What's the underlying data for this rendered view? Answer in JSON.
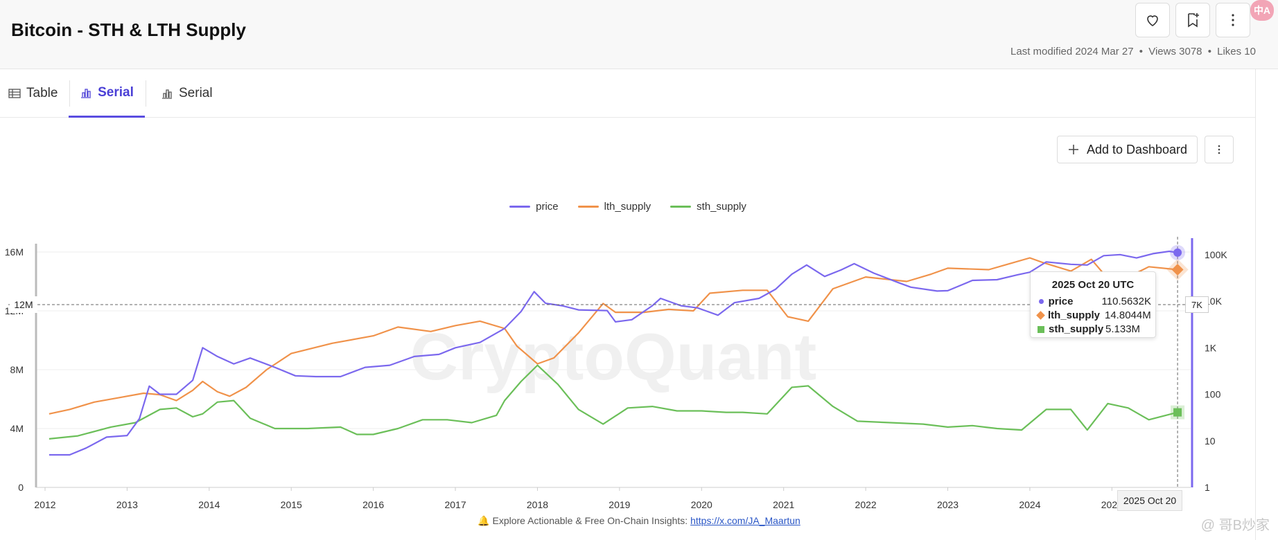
{
  "header": {
    "title": "Bitcoin - STH & LTH Supply",
    "meta_modified": "Last modified 2024 Mar 27",
    "meta_views": "Views 3078",
    "meta_likes": "Likes 10",
    "meta_sep": "•",
    "translate_badge": "中A"
  },
  "tabs": [
    {
      "label": "Table",
      "icon": "table-icon"
    },
    {
      "label": "Serial",
      "icon": "bar-chart-icon"
    },
    {
      "label": "Serial",
      "icon": "bar-chart-icon"
    }
  ],
  "toolbar": {
    "add_label": "Add to Dashboard"
  },
  "colors": {
    "price": "#7b68ee",
    "lth": "#f0924a",
    "sth": "#6bbf59",
    "accent": "#5a4de0"
  },
  "tooltip": {
    "title": "2025 Oct 20 UTC",
    "rows": [
      {
        "name": "price",
        "value": "110.5632K"
      },
      {
        "name": "lth_supply",
        "value": "14.8044M"
      },
      {
        "name": "sth_supply",
        "value": "5.133M"
      }
    ]
  },
  "badges": {
    "right_axis": "7K",
    "date": "2025 Oct 20",
    "left_axis": "12M"
  },
  "footer": {
    "text": "🔔 Explore Actionable & Free On-Chain Insights: ",
    "link": "https://x.com/JA_Maartun"
  },
  "watermark": "CryptoQuant",
  "corner_watermark": "@ 哥B炒家",
  "chart_data": {
    "type": "line",
    "title": "",
    "legend_position": "top-center",
    "x_ticks": [
      "2012",
      "2013",
      "2014",
      "2015",
      "2016",
      "2017",
      "2018",
      "2019",
      "2020",
      "2021",
      "2022",
      "2023",
      "2024",
      "2025"
    ],
    "y_left": {
      "label": "",
      "ticks": [
        "0",
        "4M",
        "8M",
        "12M",
        "16M"
      ],
      "range": [
        0,
        16000000
      ]
    },
    "y_right": {
      "label": "",
      "scale": "log",
      "ticks": [
        "1",
        "10",
        "100",
        "1K",
        "10K",
        "100K"
      ],
      "range": [
        1,
        150000
      ]
    },
    "series": [
      {
        "name": "price",
        "axis": "right",
        "color": "#7b68ee",
        "points": [
          [
            2012.05,
            5
          ],
          [
            2012.3,
            5
          ],
          [
            2012.5,
            7
          ],
          [
            2012.75,
            12
          ],
          [
            2013.0,
            13
          ],
          [
            2013.15,
            30
          ],
          [
            2013.27,
            150
          ],
          [
            2013.4,
            100
          ],
          [
            2013.6,
            100
          ],
          [
            2013.8,
            200
          ],
          [
            2013.92,
            1000
          ],
          [
            2014.1,
            650
          ],
          [
            2014.3,
            450
          ],
          [
            2014.5,
            600
          ],
          [
            2014.8,
            380
          ],
          [
            2015.05,
            250
          ],
          [
            2015.3,
            240
          ],
          [
            2015.6,
            240
          ],
          [
            2015.9,
            380
          ],
          [
            2016.2,
            420
          ],
          [
            2016.5,
            650
          ],
          [
            2016.8,
            720
          ],
          [
            2017.0,
            1000
          ],
          [
            2017.3,
            1300
          ],
          [
            2017.6,
            2600
          ],
          [
            2017.8,
            6000
          ],
          [
            2017.96,
            16000
          ],
          [
            2018.1,
            9000
          ],
          [
            2018.3,
            8000
          ],
          [
            2018.5,
            6500
          ],
          [
            2018.85,
            6300
          ],
          [
            2018.95,
            3600
          ],
          [
            2019.15,
            4000
          ],
          [
            2019.4,
            8000
          ],
          [
            2019.5,
            11500
          ],
          [
            2019.75,
            8000
          ],
          [
            2019.95,
            7200
          ],
          [
            2020.2,
            5000
          ],
          [
            2020.4,
            9300
          ],
          [
            2020.7,
            11500
          ],
          [
            2020.9,
            18000
          ],
          [
            2021.1,
            38000
          ],
          [
            2021.28,
            60000
          ],
          [
            2021.5,
            34000
          ],
          [
            2021.7,
            47000
          ],
          [
            2021.86,
            64000
          ],
          [
            2022.1,
            40000
          ],
          [
            2022.4,
            25000
          ],
          [
            2022.55,
            20000
          ],
          [
            2022.87,
            16500
          ],
          [
            2023.0,
            16800
          ],
          [
            2023.3,
            28000
          ],
          [
            2023.6,
            29000
          ],
          [
            2023.85,
            37000
          ],
          [
            2024.0,
            42000
          ],
          [
            2024.2,
            70000
          ],
          [
            2024.5,
            62000
          ],
          [
            2024.7,
            60000
          ],
          [
            2024.9,
            95000
          ],
          [
            2025.1,
            100000
          ],
          [
            2025.3,
            85000
          ],
          [
            2025.5,
            105000
          ],
          [
            2025.7,
            118000
          ],
          [
            2025.8,
            110563
          ]
        ]
      },
      {
        "name": "lth_supply",
        "axis": "left",
        "color": "#f0924a",
        "points": [
          [
            2012.05,
            5.0
          ],
          [
            2012.3,
            5.3
          ],
          [
            2012.6,
            5.8
          ],
          [
            2012.9,
            6.1
          ],
          [
            2013.2,
            6.4
          ],
          [
            2013.4,
            6.3
          ],
          [
            2013.6,
            5.9
          ],
          [
            2013.8,
            6.6
          ],
          [
            2013.92,
            7.2
          ],
          [
            2014.1,
            6.5
          ],
          [
            2014.25,
            6.2
          ],
          [
            2014.45,
            6.8
          ],
          [
            2014.7,
            8.0
          ],
          [
            2015.0,
            9.1
          ],
          [
            2015.5,
            9.8
          ],
          [
            2016.0,
            10.3
          ],
          [
            2016.3,
            10.9
          ],
          [
            2016.7,
            10.6
          ],
          [
            2017.0,
            11.0
          ],
          [
            2017.3,
            11.3
          ],
          [
            2017.6,
            10.8
          ],
          [
            2017.75,
            9.6
          ],
          [
            2018.0,
            8.4
          ],
          [
            2018.2,
            8.8
          ],
          [
            2018.5,
            10.5
          ],
          [
            2018.8,
            12.5
          ],
          [
            2018.95,
            11.9
          ],
          [
            2019.3,
            11.9
          ],
          [
            2019.6,
            12.1
          ],
          [
            2019.9,
            12.0
          ],
          [
            2020.1,
            13.2
          ],
          [
            2020.5,
            13.4
          ],
          [
            2020.8,
            13.4
          ],
          [
            2021.05,
            11.6
          ],
          [
            2021.3,
            11.3
          ],
          [
            2021.6,
            13.5
          ],
          [
            2022.0,
            14.3
          ],
          [
            2022.5,
            14.0
          ],
          [
            2022.8,
            14.5
          ],
          [
            2023.0,
            14.9
          ],
          [
            2023.5,
            14.8
          ],
          [
            2024.0,
            15.6
          ],
          [
            2024.15,
            15.3
          ],
          [
            2024.5,
            14.7
          ],
          [
            2024.75,
            15.5
          ],
          [
            2024.95,
            14.2
          ],
          [
            2025.2,
            14.3
          ],
          [
            2025.45,
            15.0
          ],
          [
            2025.8,
            14.8
          ]
        ]
      },
      {
        "name": "sth_supply",
        "axis": "left",
        "color": "#6bbf59",
        "points": [
          [
            2012.05,
            3.3
          ],
          [
            2012.4,
            3.5
          ],
          [
            2012.8,
            4.1
          ],
          [
            2013.1,
            4.4
          ],
          [
            2013.4,
            5.3
          ],
          [
            2013.6,
            5.4
          ],
          [
            2013.8,
            4.8
          ],
          [
            2013.92,
            5.0
          ],
          [
            2014.1,
            5.8
          ],
          [
            2014.3,
            5.9
          ],
          [
            2014.5,
            4.7
          ],
          [
            2014.8,
            4.0
          ],
          [
            2015.2,
            4.0
          ],
          [
            2015.6,
            4.1
          ],
          [
            2015.8,
            3.6
          ],
          [
            2016.0,
            3.6
          ],
          [
            2016.3,
            4.0
          ],
          [
            2016.6,
            4.6
          ],
          [
            2016.9,
            4.6
          ],
          [
            2017.2,
            4.4
          ],
          [
            2017.5,
            4.9
          ],
          [
            2017.6,
            5.9
          ],
          [
            2017.8,
            7.2
          ],
          [
            2018.0,
            8.3
          ],
          [
            2018.25,
            7.0
          ],
          [
            2018.5,
            5.3
          ],
          [
            2018.8,
            4.3
          ],
          [
            2019.1,
            5.4
          ],
          [
            2019.4,
            5.5
          ],
          [
            2019.7,
            5.2
          ],
          [
            2020.0,
            5.2
          ],
          [
            2020.3,
            5.1
          ],
          [
            2020.5,
            5.1
          ],
          [
            2020.8,
            5.0
          ],
          [
            2021.1,
            6.8
          ],
          [
            2021.3,
            6.9
          ],
          [
            2021.6,
            5.5
          ],
          [
            2021.9,
            4.5
          ],
          [
            2022.3,
            4.4
          ],
          [
            2022.7,
            4.3
          ],
          [
            2023.0,
            4.1
          ],
          [
            2023.3,
            4.2
          ],
          [
            2023.6,
            4.0
          ],
          [
            2023.9,
            3.9
          ],
          [
            2024.2,
            5.3
          ],
          [
            2024.5,
            5.3
          ],
          [
            2024.7,
            3.9
          ],
          [
            2024.95,
            5.7
          ],
          [
            2025.2,
            5.4
          ],
          [
            2025.45,
            4.6
          ],
          [
            2025.8,
            5.1
          ]
        ]
      }
    ]
  }
}
